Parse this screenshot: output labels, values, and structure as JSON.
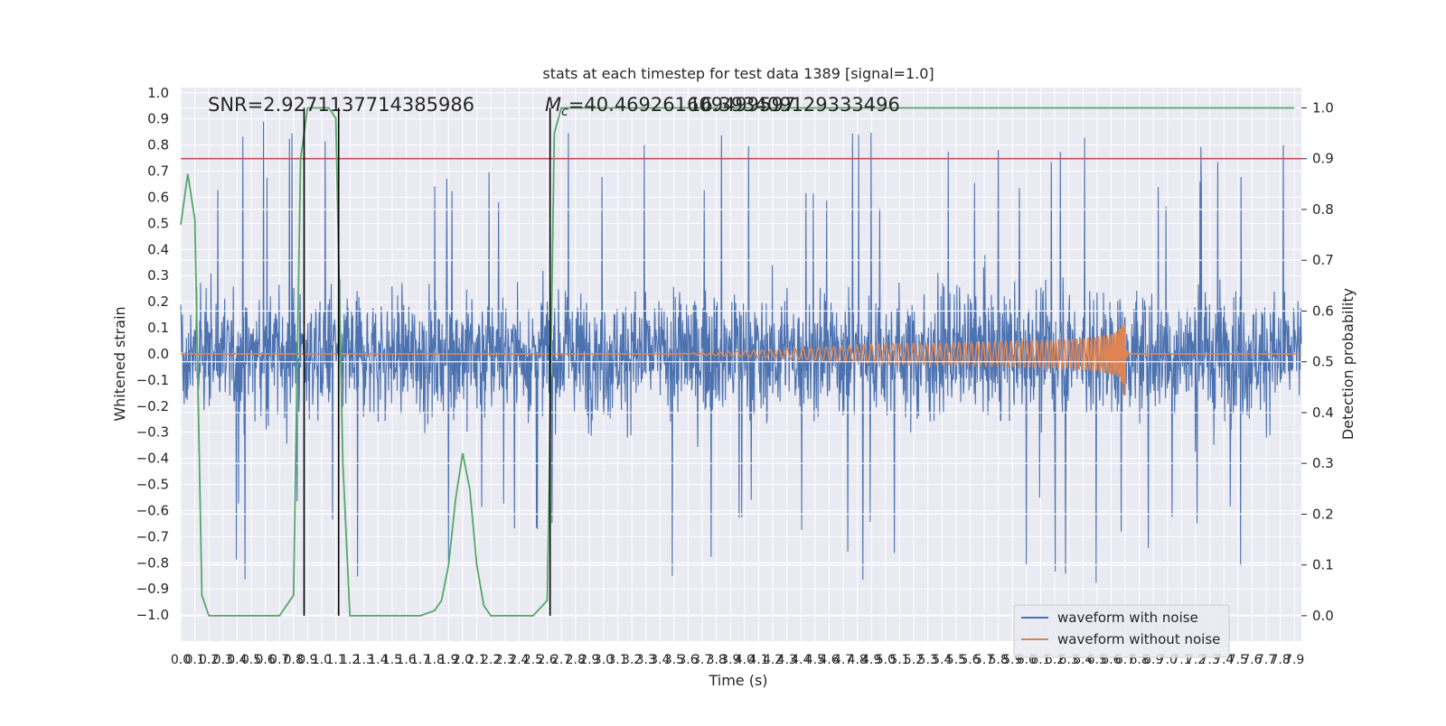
{
  "chart_data": {
    "type": "line",
    "title": "stats at each timestep for test data 1389 [signal=1.0]",
    "xlabel": "Time (s)",
    "ylabel": "Whitened strain",
    "y2label": "Detection probability",
    "xlim": [
      0.0,
      7.95
    ],
    "ylim": [
      -1.1,
      1.02
    ],
    "y2lim": [
      -0.05,
      1.04
    ],
    "grid": true,
    "legend_position": "lower-right",
    "x_tick_labels": [
      "0.0",
      "0.1",
      "0.2",
      "0.3",
      "0.4",
      "0.5",
      "0.6",
      "0.7",
      "0.8",
      "0.9",
      "1.0",
      "1.1",
      "1.2",
      "1.3",
      "1.4",
      "1.5",
      "1.6",
      "1.7",
      "1.8",
      "1.9",
      "2.0",
      "2.1",
      "2.2",
      "2.3",
      "2.4",
      "2.5",
      "2.6",
      "2.7",
      "2.8",
      "2.9",
      "3.0",
      "3.1",
      "3.2",
      "3.3",
      "3.4",
      "3.5",
      "3.6",
      "3.7",
      "3.8",
      "3.9",
      "4.0",
      "4.1",
      "4.2",
      "4.3",
      "4.4",
      "4.5",
      "4.6",
      "4.7",
      "4.8",
      "4.9",
      "5.0",
      "5.1",
      "5.2",
      "5.3",
      "5.4",
      "5.5",
      "5.6",
      "5.7",
      "5.8",
      "5.9",
      "6.0",
      "6.1",
      "6.2",
      "6.3",
      "6.4",
      "6.5",
      "6.6",
      "6.7",
      "6.8",
      "6.9",
      "7.0",
      "7.1",
      "7.2",
      "7.3",
      "7.4",
      "7.5",
      "7.6",
      "7.7",
      "7.8",
      "7.9"
    ],
    "y_tick_labels": [
      "1.0",
      "0.9",
      "0.8",
      "0.7",
      "0.6",
      "0.5",
      "0.4",
      "0.3",
      "0.2",
      "0.1",
      "0.0",
      "−0.1",
      "−0.2",
      "−0.3",
      "−0.4",
      "−0.5",
      "−0.6",
      "−0.7",
      "−0.8",
      "−0.9",
      "−1.0"
    ],
    "y2_tick_labels": [
      "1.0",
      "0.9",
      "0.8",
      "0.7",
      "0.6",
      "0.5",
      "0.4",
      "0.3",
      "0.2",
      "0.1",
      "0.0"
    ],
    "annotations": {
      "snr": "SNR=2.9271137714385986",
      "mc_symbol": "M",
      "mc_sub": "c",
      "mc_value": "=40.469261609499597",
      "mc_overlap": "16.393409129333496"
    },
    "series": [
      {
        "name": "waveform with noise",
        "color": "#4c72b0",
        "kind": "noise",
        "amplitude_envelope": [
          -1.0,
          0.93
        ]
      },
      {
        "name": "waveform without noise",
        "color": "#dd8452",
        "kind": "chirp",
        "merger_time": 6.7,
        "peak_amplitude": 0.18
      },
      {
        "name": "",
        "color": "#55a868",
        "kind": "probability",
        "axis": "y2",
        "x": [
          0.0,
          0.05,
          0.1,
          0.15,
          0.2,
          0.25,
          0.3,
          0.4,
          0.5,
          0.6,
          0.7,
          0.8,
          0.85,
          0.9,
          0.95,
          1.0,
          1.05,
          1.1,
          1.15,
          1.2,
          1.3,
          1.5,
          1.7,
          1.8,
          1.85,
          1.9,
          1.95,
          2.0,
          2.05,
          2.1,
          2.15,
          2.2,
          2.3,
          2.4,
          2.5,
          2.6,
          2.65,
          2.7,
          2.75,
          7.9
        ],
        "y": [
          0.77,
          0.87,
          0.78,
          0.04,
          0.0,
          0.0,
          0.0,
          0.0,
          0.0,
          0.0,
          0.0,
          0.04,
          0.9,
          1.0,
          1.0,
          1.0,
          1.0,
          0.98,
          0.3,
          0.0,
          0.0,
          0.0,
          0.0,
          0.01,
          0.03,
          0.1,
          0.23,
          0.32,
          0.25,
          0.1,
          0.02,
          0.0,
          0.0,
          0.0,
          0.0,
          0.03,
          0.95,
          1.0,
          1.0,
          1.0
        ]
      },
      {
        "name": "",
        "color": "#c44e52",
        "kind": "threshold",
        "axis": "y2",
        "value": 0.9
      }
    ],
    "vertical_lines_x": [
      0.875,
      1.12,
      2.62
    ]
  }
}
